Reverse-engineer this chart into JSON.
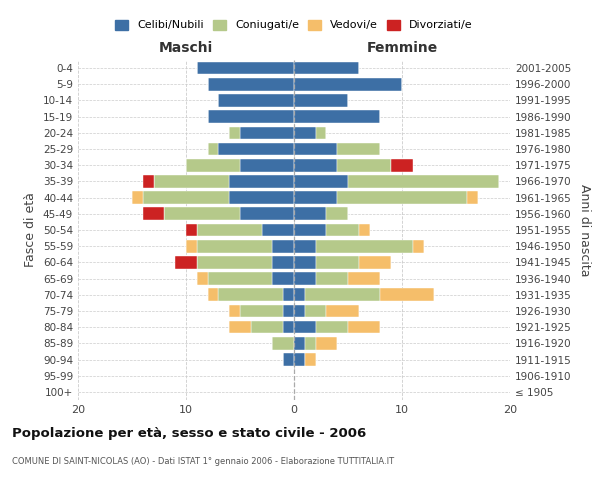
{
  "age_groups": [
    "100+",
    "95-99",
    "90-94",
    "85-89",
    "80-84",
    "75-79",
    "70-74",
    "65-69",
    "60-64",
    "55-59",
    "50-54",
    "45-49",
    "40-44",
    "35-39",
    "30-34",
    "25-29",
    "20-24",
    "15-19",
    "10-14",
    "5-9",
    "0-4"
  ],
  "birth_years": [
    "≤ 1905",
    "1906-1910",
    "1911-1915",
    "1916-1920",
    "1921-1925",
    "1926-1930",
    "1931-1935",
    "1936-1940",
    "1941-1945",
    "1946-1950",
    "1951-1955",
    "1956-1960",
    "1961-1965",
    "1966-1970",
    "1971-1975",
    "1976-1980",
    "1981-1985",
    "1986-1990",
    "1991-1995",
    "1996-2000",
    "2001-2005"
  ],
  "maschi_celibi": [
    0,
    0,
    1,
    0,
    1,
    1,
    1,
    2,
    2,
    2,
    3,
    5,
    6,
    6,
    5,
    7,
    5,
    8,
    7,
    8,
    9
  ],
  "maschi_coniugati": [
    0,
    0,
    0,
    2,
    3,
    4,
    6,
    6,
    7,
    7,
    6,
    7,
    8,
    7,
    5,
    1,
    1,
    0,
    0,
    0,
    0
  ],
  "maschi_vedovi": [
    0,
    0,
    0,
    0,
    2,
    1,
    1,
    1,
    0,
    1,
    0,
    0,
    1,
    0,
    0,
    0,
    0,
    0,
    0,
    0,
    0
  ],
  "maschi_divorziati": [
    0,
    0,
    0,
    0,
    0,
    0,
    0,
    0,
    2,
    0,
    1,
    2,
    0,
    1,
    0,
    0,
    0,
    0,
    0,
    0,
    0
  ],
  "femmine_celibi": [
    0,
    0,
    1,
    1,
    2,
    1,
    1,
    2,
    2,
    2,
    3,
    3,
    4,
    5,
    4,
    4,
    2,
    8,
    5,
    10,
    6
  ],
  "femmine_coniugati": [
    0,
    0,
    0,
    1,
    3,
    2,
    7,
    3,
    4,
    9,
    3,
    2,
    12,
    14,
    5,
    4,
    1,
    0,
    0,
    0,
    0
  ],
  "femmine_vedovi": [
    0,
    0,
    1,
    2,
    3,
    3,
    5,
    3,
    3,
    1,
    1,
    0,
    1,
    0,
    0,
    0,
    0,
    0,
    0,
    0,
    0
  ],
  "femmine_divorziati": [
    0,
    0,
    0,
    0,
    0,
    0,
    0,
    0,
    0,
    0,
    0,
    0,
    0,
    0,
    2,
    0,
    0,
    0,
    0,
    0,
    0
  ],
  "color_celibi": "#3d6fa5",
  "color_coniugati": "#b5c98a",
  "color_vedovi": "#f5be6a",
  "color_divorziati": "#cc2222",
  "title": "Popolazione per età, sesso e stato civile - 2006",
  "subtitle": "COMUNE DI SAINT-NICOLAS (AO) - Dati ISTAT 1° gennaio 2006 - Elaborazione TUTTITALIA.IT",
  "xlabel_left": "Maschi",
  "xlabel_right": "Femmine",
  "ylabel_left": "Fasce di età",
  "ylabel_right": "Anni di nascita",
  "xlim": 20,
  "background_color": "#ffffff",
  "grid_color": "#cccccc"
}
